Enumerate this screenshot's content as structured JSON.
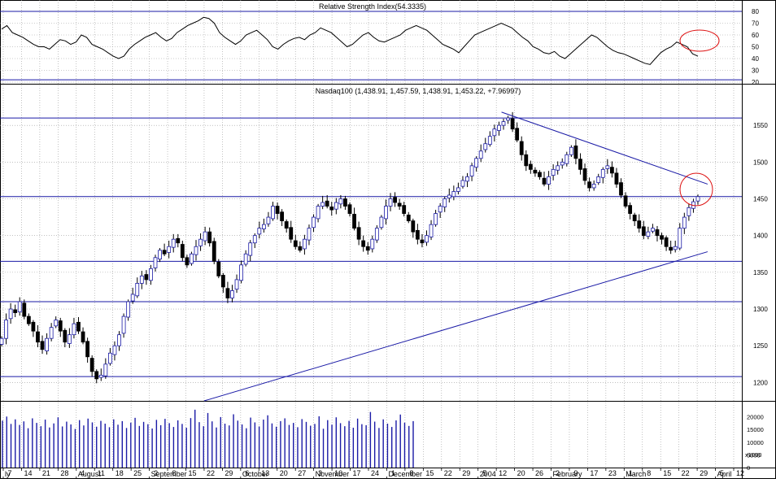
{
  "chart_data": [
    {
      "panel": "rsi",
      "type": "line",
      "title": "Relative Strength Index(54.3335)",
      "ylim": [
        20,
        80
      ],
      "yticks": [
        "80",
        "70",
        "60",
        "50",
        "40",
        "30",
        "20"
      ],
      "reference_lines": [
        80,
        22
      ],
      "grid": true,
      "color": "#000000",
      "annotation_circle": "red ellipse around latest RSI readings",
      "values": [
        65,
        68,
        62,
        60,
        58,
        55,
        52,
        50,
        50,
        48,
        52,
        56,
        55,
        52,
        54,
        60,
        58,
        52,
        50,
        48,
        45,
        42,
        40,
        42,
        48,
        52,
        55,
        58,
        60,
        62,
        58,
        55,
        57,
        62,
        65,
        68,
        70,
        72,
        75,
        74,
        70,
        62,
        58,
        55,
        52,
        55,
        60,
        62,
        64,
        60,
        56,
        50,
        48,
        52,
        55,
        57,
        58,
        56,
        60,
        62,
        66,
        64,
        62,
        58,
        54,
        50,
        52,
        56,
        60,
        62,
        58,
        55,
        54,
        56,
        58,
        60,
        64,
        66,
        68,
        66,
        64,
        60,
        56,
        52,
        50,
        48,
        45,
        50,
        55,
        60,
        62,
        64,
        66,
        68,
        70,
        68,
        66,
        62,
        58,
        55,
        50,
        48,
        45,
        44,
        46,
        42,
        40,
        44,
        48,
        52,
        56,
        60,
        58,
        54,
        50,
        47,
        45,
        44,
        42,
        40,
        38,
        36,
        35,
        40,
        45,
        48,
        50,
        54,
        52,
        50,
        44,
        42
      ]
    },
    {
      "panel": "price",
      "type": "candlestick",
      "title": "Nasdaq100 (1,438.91, 1,457.59, 1,438.91, 1,453.22, +7.96997)",
      "ylim": [
        1175,
        1590
      ],
      "yticks": [
        "1550",
        "1500",
        "1450",
        "1400",
        "1350",
        "1300",
        "1250",
        "1200"
      ],
      "horizontal_levels": [
        1560,
        1453,
        1365,
        1310,
        1208
      ],
      "trendlines": [
        {
          "from": [
            "2003-09-22",
            1175
          ],
          "to": [
            "2004-04-02",
            1378
          ]
        },
        {
          "from": [
            "2004-01-14",
            1568
          ],
          "to": [
            "2004-04-02",
            1470
          ]
        }
      ],
      "up_color": "#ffffff",
      "down_color": "#000000",
      "outline_up": "#1a1aa6",
      "annotation_circle": "red ellipse around latest candles near 1450",
      "closes": [
        1260,
        1285,
        1300,
        1295,
        1310,
        1290,
        1280,
        1270,
        1255,
        1245,
        1260,
        1275,
        1285,
        1270,
        1255,
        1265,
        1280,
        1270,
        1255,
        1235,
        1215,
        1205,
        1210,
        1225,
        1240,
        1250,
        1265,
        1290,
        1310,
        1320,
        1335,
        1345,
        1340,
        1355,
        1370,
        1380,
        1375,
        1385,
        1395,
        1390,
        1370,
        1360,
        1375,
        1385,
        1395,
        1405,
        1390,
        1365,
        1345,
        1330,
        1315,
        1325,
        1340,
        1360,
        1375,
        1390,
        1400,
        1410,
        1415,
        1425,
        1440,
        1430,
        1420,
        1410,
        1395,
        1385,
        1380,
        1395,
        1410,
        1425,
        1440,
        1445,
        1440,
        1435,
        1445,
        1450,
        1440,
        1430,
        1410,
        1395,
        1385,
        1380,
        1395,
        1410,
        1425,
        1440,
        1450,
        1445,
        1440,
        1430,
        1420,
        1405,
        1395,
        1390,
        1400,
        1415,
        1430,
        1440,
        1450,
        1455,
        1460,
        1465,
        1475,
        1480,
        1495,
        1505,
        1515,
        1525,
        1535,
        1545,
        1550,
        1555,
        1560,
        1545,
        1530,
        1510,
        1495,
        1490,
        1485,
        1480,
        1470,
        1480,
        1490,
        1495,
        1500,
        1510,
        1520,
        1505,
        1490,
        1475,
        1465,
        1470,
        1480,
        1490,
        1495,
        1485,
        1470,
        1455,
        1440,
        1430,
        1420,
        1410,
        1400,
        1405,
        1410,
        1400,
        1395,
        1385,
        1380,
        1385,
        1410,
        1425,
        1438,
        1446,
        1453
      ]
    },
    {
      "panel": "volume",
      "type": "bar",
      "ylabel": "x1000",
      "yticks": [
        "20000",
        "15000",
        "10000",
        "5000",
        "0"
      ],
      "ylim": [
        0,
        25000
      ],
      "values": [
        18500,
        20100,
        17200,
        19000,
        16800,
        18200,
        15500,
        19400,
        17600,
        16300,
        18900,
        15800,
        17400,
        19800,
        16200,
        18100,
        17000,
        15200,
        18700,
        16600,
        19300,
        17800,
        16100,
        18400,
        17300,
        15900,
        19000,
        16900,
        18300,
        15600,
        17700,
        19600,
        16400,
        18000,
        17100,
        15400,
        18800,
        16700,
        19200,
        17500,
        16000,
        18600,
        17200,
        15700,
        19500,
        22800,
        17900,
        16300,
        21500,
        18200,
        15800,
        19900,
        17300,
        16600,
        21000,
        18500,
        17000,
        15500,
        19700,
        17800,
        16200,
        18900,
        20600,
        17400,
        16100,
        18300,
        19400,
        16800,
        17600,
        15900,
        19100,
        18000,
        16500,
        17200,
        20200,
        15300,
        18700,
        16900,
        19800,
        17500,
        16300,
        18400,
        15700,
        19300,
        17100,
        16700,
        21900,
        18100,
        15600,
        19000,
        17300,
        16000,
        18600,
        20900,
        17700,
        16400,
        18300
      ]
    },
    {
      "panel": "x-axis",
      "type": "axis",
      "day_ticks": [
        "7",
        "14",
        "21",
        "28",
        "4",
        "11",
        "18",
        "25",
        "2",
        "8",
        "15",
        "22",
        "29",
        "6",
        "13",
        "20",
        "27",
        "3",
        "10",
        "17",
        "24",
        "1",
        "8",
        "15",
        "22",
        "29",
        "5",
        "12",
        "20",
        "26",
        "2",
        "9",
        "17",
        "23",
        "1",
        "8",
        "15",
        "22",
        "29",
        "5",
        "12"
      ],
      "month_labels": [
        "ly",
        "August",
        "September",
        "October",
        "November",
        "December",
        "2004",
        "February",
        "March",
        "April"
      ]
    }
  ]
}
